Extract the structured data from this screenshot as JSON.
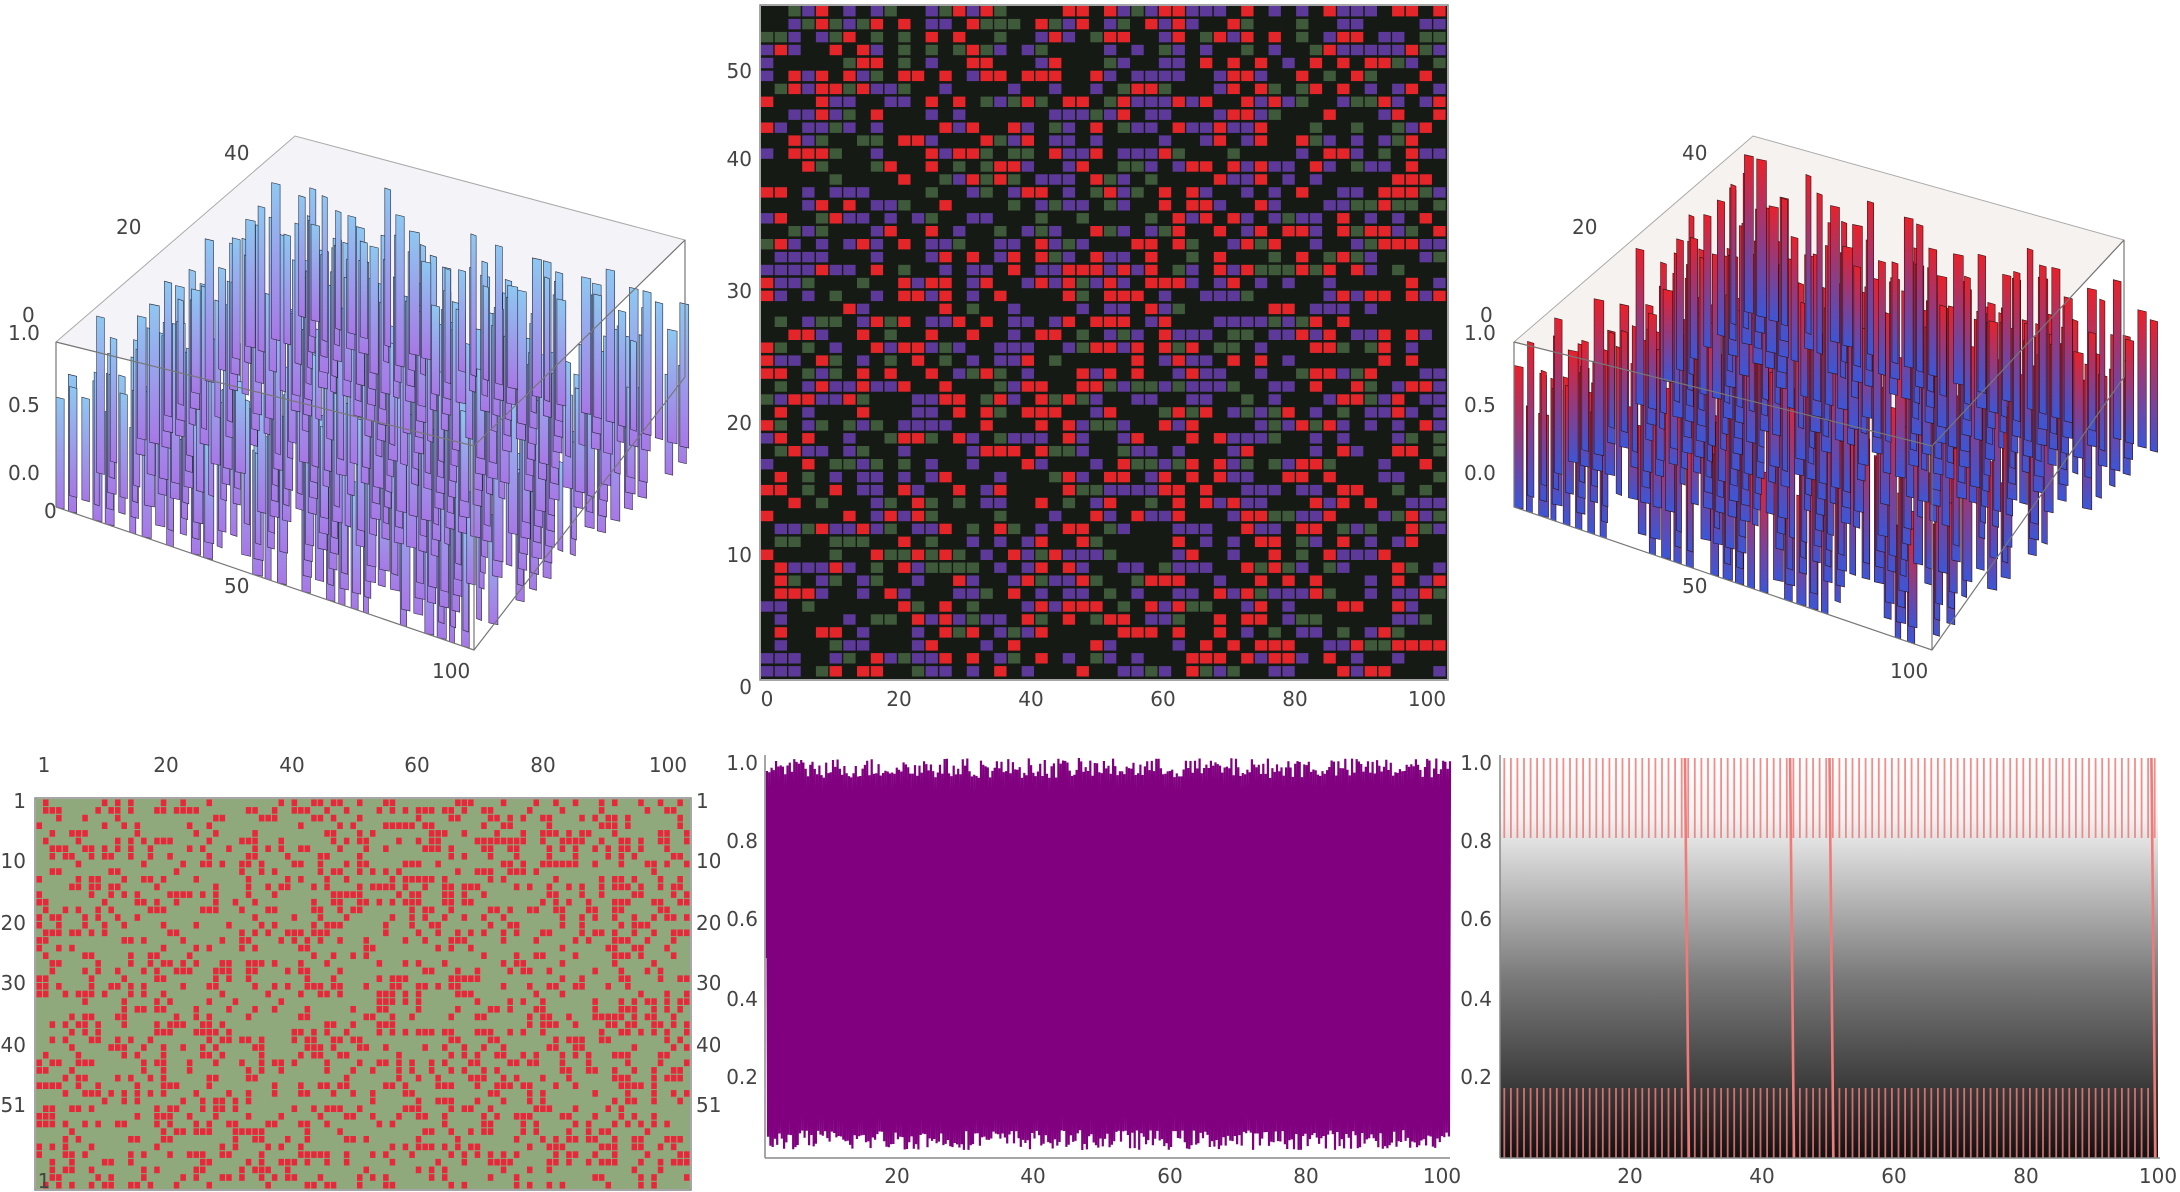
{
  "chart_data": [
    {
      "id": "surface-blue",
      "type": "surface3d",
      "z_ticks": [
        "0.0",
        "0.5",
        "1.0"
      ],
      "y_ticks": [
        "0",
        "20",
        "40"
      ],
      "x_ticks": [
        "0",
        "50",
        "100"
      ],
      "zlim": [
        0,
        1
      ],
      "xlim": [
        0,
        100
      ],
      "ylim": [
        0,
        51
      ],
      "colors": {
        "top": "#8ec8f2",
        "bottom": "#a777e6",
        "edge": "#2b2b3a"
      }
    },
    {
      "id": "density-red",
      "type": "heatmap",
      "x_ticks": [
        "0",
        "20",
        "40",
        "60",
        "80",
        "100"
      ],
      "y_ticks": [
        "0",
        "10",
        "20",
        "30",
        "40",
        "50"
      ],
      "xlim": [
        0,
        100
      ],
      "ylim": [
        0,
        51
      ],
      "colors": {
        "background": "#161a14",
        "high": "#e4262b",
        "mid": "#5d3a9a",
        "low": "#3f5a3a"
      }
    },
    {
      "id": "surface-red",
      "type": "surface3d",
      "z_ticks": [
        "0.0",
        "0.5",
        "1.0"
      ],
      "y_ticks": [
        "0",
        "20",
        "40"
      ],
      "x_ticks": [
        "50",
        "100"
      ],
      "zlim": [
        0,
        1
      ],
      "xlim": [
        0,
        100
      ],
      "ylim": [
        0,
        51
      ],
      "colors": {
        "top": "#e8212b",
        "bottom": "#3a56d8",
        "edge": "#3a1012"
      }
    },
    {
      "id": "array-plot",
      "type": "heatmap",
      "x_ticks": [
        "1",
        "20",
        "40",
        "60",
        "80",
        "100"
      ],
      "y_ticks": [
        "1",
        "10",
        "20",
        "30",
        "40",
        "51"
      ],
      "rows": 51,
      "cols": 100,
      "colors": {
        "background": "#8fa87c",
        "cell": "#e8273a"
      }
    },
    {
      "id": "line-purple",
      "type": "line",
      "x_ticks": [
        "20",
        "40",
        "60",
        "80",
        "100"
      ],
      "y_ticks": [
        "0.2",
        "0.4",
        "0.6",
        "0.8",
        "1.0"
      ],
      "xlim": [
        0,
        100
      ],
      "ylim": [
        0,
        1
      ],
      "colors": {
        "fill": "#800080"
      }
    },
    {
      "id": "line-gradient",
      "type": "line",
      "x_ticks": [
        "20",
        "40",
        "60",
        "80",
        "100"
      ],
      "y_ticks": [
        "0.2",
        "0.4",
        "0.6",
        "0.8",
        "1.0"
      ],
      "xlim": [
        0,
        100
      ],
      "ylim": [
        0,
        1
      ],
      "spike_x": [
        28,
        44,
        50,
        99
      ],
      "colors": {
        "line": "#f07a78",
        "top": "#ffffff",
        "bottom": "#111111"
      }
    }
  ]
}
